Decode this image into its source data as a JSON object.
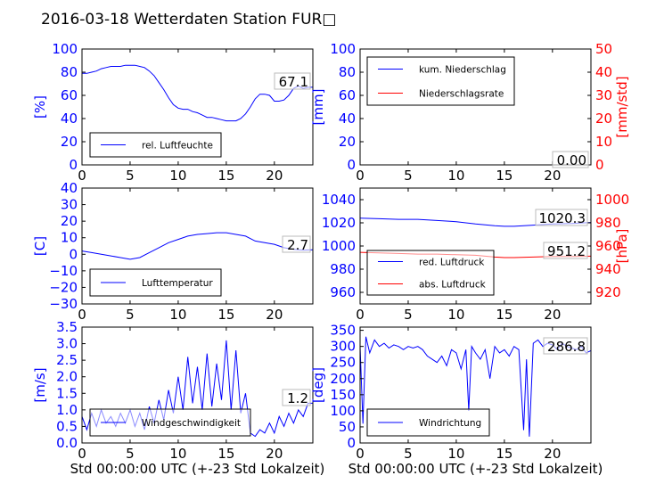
{
  "title": "2016-03-18 Wetterdaten Station FUR□",
  "colors": {
    "blue": "#0000ff",
    "red": "#ff0000",
    "axis": "#000000",
    "light_blue": "#8080ff"
  },
  "chart_data": [
    {
      "id": "humidity",
      "type": "line",
      "xlim": [
        0,
        24
      ],
      "x_ticks": [
        "0",
        "5",
        "10",
        "15",
        "20"
      ],
      "ylim": [
        0,
        100
      ],
      "y_ticks": [
        "0",
        "20",
        "40",
        "60",
        "80",
        "100"
      ],
      "ylabel": "[%]",
      "xlabel": "",
      "legend": {
        "placement": "lower-left",
        "entries": [
          {
            "label": "rel. Luftfeuchte",
            "color": "#0000ff"
          }
        ]
      },
      "annotation": "67.1",
      "series": [
        {
          "name": "rel. Luftfeuchte",
          "color": "#0000ff",
          "x": [
            0,
            0.5,
            1,
            1.5,
            2,
            2.5,
            3,
            3.5,
            4,
            4.5,
            5,
            5.5,
            6,
            6.5,
            7,
            7.5,
            8,
            8.5,
            9,
            9.5,
            10,
            10.5,
            11,
            11.5,
            12,
            12.5,
            13,
            13.5,
            14,
            14.5,
            15,
            15.5,
            16,
            16.5,
            17,
            17.5,
            18,
            18.5,
            19,
            19.5,
            20,
            20.5,
            21,
            21.5,
            22,
            22.5,
            23,
            23.5,
            24
          ],
          "values": [
            79,
            79,
            80,
            81,
            83,
            84,
            85,
            85,
            85,
            86,
            86,
            86,
            85,
            84,
            81,
            77,
            71,
            65,
            58,
            52,
            49,
            48,
            48,
            46,
            45,
            43,
            41,
            41,
            40,
            39,
            38,
            38,
            38,
            40,
            44,
            50,
            57,
            61,
            61,
            60,
            55,
            55,
            56,
            60,
            66,
            68,
            66,
            67,
            67
          ]
        }
      ]
    },
    {
      "id": "precip",
      "type": "line",
      "xlim": [
        0,
        24
      ],
      "x_ticks": [
        "0",
        "5",
        "10",
        "15",
        "20"
      ],
      "ylim": [
        0,
        100
      ],
      "y_ticks": [
        "0",
        "20",
        "40",
        "60",
        "80",
        "100"
      ],
      "ylabel": "[mm]",
      "y2lim": [
        0,
        50
      ],
      "y2_ticks": [
        "0",
        "10",
        "20",
        "30",
        "40",
        "50"
      ],
      "y2label": "[mm/std]",
      "xlabel": "",
      "legend": {
        "placement": "upper-left",
        "entries": [
          {
            "label": "kum. Niederschlag",
            "color": "#0000ff"
          },
          {
            "label": "Niederschlagsrate",
            "color": "#ff0000"
          }
        ]
      },
      "annotation": "0.00",
      "series": [
        {
          "name": "kum. Niederschlag",
          "color": "#0000ff",
          "axis": "left",
          "x": [
            0,
            24
          ],
          "values": [
            0,
            0
          ]
        },
        {
          "name": "Niederschlagsrate",
          "color": "#ff0000",
          "axis": "right",
          "x": [
            0,
            24
          ],
          "values": [
            0,
            0
          ]
        }
      ]
    },
    {
      "id": "temperature",
      "type": "line",
      "xlim": [
        0,
        24
      ],
      "x_ticks": [
        "0",
        "5",
        "10",
        "15",
        "20"
      ],
      "ylim": [
        -30,
        40
      ],
      "y_ticks": [
        "−30",
        "−20",
        "−10",
        "0",
        "10",
        "20",
        "30",
        "40"
      ],
      "ylabel": "[C]",
      "xlabel": "",
      "legend": {
        "placement": "lower-left",
        "entries": [
          {
            "label": "Lufttemperatur",
            "color": "#0000ff"
          }
        ]
      },
      "annotation": "2.7",
      "series": [
        {
          "name": "Lufttemperatur",
          "color": "#0000ff",
          "x": [
            0,
            1,
            2,
            3,
            4,
            5,
            6,
            7,
            8,
            9,
            10,
            11,
            12,
            13,
            14,
            15,
            16,
            17,
            18,
            19,
            20,
            21,
            22,
            23,
            24
          ],
          "values": [
            2,
            1,
            0,
            -1,
            -2,
            -3,
            -2,
            1,
            4,
            7,
            9,
            11,
            12,
            12.5,
            13,
            13,
            12,
            11,
            8,
            7,
            6,
            4,
            3,
            2.5,
            2.7
          ]
        }
      ]
    },
    {
      "id": "pressure",
      "type": "line",
      "xlim": [
        0,
        24
      ],
      "x_ticks": [
        "0",
        "5",
        "10",
        "15",
        "20"
      ],
      "ylim": [
        950,
        1050
      ],
      "y_ticks": [
        "960",
        "980",
        "1000",
        "1020",
        "1040"
      ],
      "y2lim": [
        910,
        1010
      ],
      "y2_ticks": [
        "920",
        "940",
        "960",
        "980",
        "1000"
      ],
      "y2label": "[hPa]",
      "xlabel": "",
      "legend": {
        "placement": "lower-left",
        "entries": [
          {
            "label": "red. Luftdruck",
            "color": "#0000ff"
          },
          {
            "label": "abs. Luftdruck",
            "color": "#ff0000"
          }
        ]
      },
      "annotations": [
        "1020.3",
        "951.2"
      ],
      "series": [
        {
          "name": "red. Luftdruck",
          "color": "#0000ff",
          "axis": "left",
          "x": [
            0,
            2,
            4,
            6,
            8,
            10,
            12,
            14,
            15,
            16,
            18,
            20,
            22,
            24
          ],
          "values": [
            1024,
            1023.5,
            1023,
            1023,
            1022,
            1021,
            1019,
            1017.5,
            1017,
            1017,
            1018,
            1019,
            1019.5,
            1020.3
          ]
        },
        {
          "name": "abs. Luftdruck",
          "color": "#ff0000",
          "axis": "right",
          "x": [
            0,
            2,
            4,
            6,
            8,
            10,
            12,
            14,
            15,
            16,
            18,
            20,
            22,
            24
          ],
          "values": [
            954.5,
            954,
            953.5,
            953,
            953,
            952.5,
            952,
            950.5,
            950,
            950,
            950.5,
            951,
            951,
            951.2
          ]
        }
      ]
    },
    {
      "id": "wind_speed",
      "type": "line",
      "xlim": [
        0,
        24
      ],
      "x_ticks": [
        "0",
        "5",
        "10",
        "15",
        "20"
      ],
      "ylim": [
        0,
        3.5
      ],
      "y_ticks": [
        "0.0",
        "0.5",
        "1.0",
        "1.5",
        "2.0",
        "2.5",
        "3.0",
        "3.5"
      ],
      "ylabel": "[m/s]",
      "xlabel": "Std 00:00:00 UTC (+-23 Std Lokalzeit)",
      "legend": {
        "placement": "lower-left",
        "entries": [
          {
            "label": "Windgeschwindigkeit",
            "color": "#0000ff"
          }
        ]
      },
      "annotation": "1.2",
      "series": [
        {
          "name": "Windgeschwindigkeit",
          "color": "#0000ff",
          "x": [
            0,
            0.5,
            1,
            1.5,
            2,
            2.5,
            3,
            3.5,
            4,
            4.5,
            5,
            5.5,
            6,
            6.5,
            7,
            7.5,
            8,
            8.5,
            9,
            9.5,
            10,
            10.5,
            11,
            11.5,
            12,
            12.5,
            13,
            13.5,
            14,
            14.5,
            15,
            15.5,
            16,
            16.5,
            17,
            17.5,
            18,
            18.5,
            19,
            19.5,
            20,
            20.5,
            21,
            21.5,
            22,
            22.5,
            23,
            23.5,
            24
          ],
          "values": [
            0.8,
            0.4,
            0.9,
            0.5,
            1.0,
            0.6,
            0.8,
            0.5,
            0.9,
            0.6,
            1.0,
            0.5,
            0.9,
            0.4,
            1.1,
            0.6,
            1.3,
            0.7,
            1.6,
            0.9,
            2.0,
            1.0,
            2.6,
            1.2,
            2.3,
            1.0,
            2.7,
            1.1,
            2.4,
            1.3,
            3.1,
            1.0,
            2.8,
            0.9,
            1.5,
            0.3,
            0.2,
            0.4,
            0.3,
            0.6,
            0.3,
            0.8,
            0.5,
            0.9,
            0.6,
            1.0,
            0.8,
            1.2,
            1.2
          ]
        },
        {
          "name": "",
          "color": "#0000ff",
          "x": [],
          "values": []
        }
      ]
    },
    {
      "id": "wind_dir",
      "type": "line",
      "xlim": [
        0,
        24
      ],
      "x_ticks": [
        "0",
        "5",
        "10",
        "15",
        "20"
      ],
      "ylim": [
        0,
        360
      ],
      "y_ticks": [
        "0",
        "50",
        "100",
        "150",
        "200",
        "250",
        "300",
        "350"
      ],
      "ylabel": "[deg]",
      "xlabel": "Std 00:00:00 UTC (+-23 Std Lokalzeit)",
      "legend": {
        "placement": "lower-left",
        "entries": [
          {
            "label": "Windrichtung",
            "color": "#0000ff"
          }
        ]
      },
      "annotation": "286.8",
      "series": [
        {
          "name": "Windrichtung",
          "color": "#0000ff",
          "x": [
            0,
            0.3,
            0.6,
            1,
            1.5,
            2,
            2.5,
            3,
            3.5,
            4,
            4.5,
            5,
            5.5,
            6,
            6.5,
            7,
            7.5,
            8,
            8.5,
            9,
            9.5,
            10,
            10.5,
            11,
            11.3,
            11.6,
            12,
            12.5,
            13,
            13.5,
            14,
            14.5,
            15,
            15.5,
            16,
            16.5,
            17,
            17.3,
            17.6,
            18,
            18.5,
            19,
            19.5,
            20,
            20.5,
            21,
            21.5,
            22,
            22.5,
            23,
            23.5,
            24
          ],
          "values": [
            300,
            60,
            330,
            280,
            320,
            300,
            310,
            295,
            305,
            300,
            290,
            300,
            295,
            300,
            290,
            270,
            260,
            250,
            270,
            240,
            290,
            280,
            230,
            290,
            100,
            300,
            280,
            260,
            290,
            200,
            300,
            280,
            290,
            270,
            300,
            290,
            40,
            260,
            20,
            310,
            320,
            300,
            310,
            305,
            290,
            310,
            300,
            295,
            290,
            300,
            280,
            287
          ]
        }
      ]
    }
  ]
}
